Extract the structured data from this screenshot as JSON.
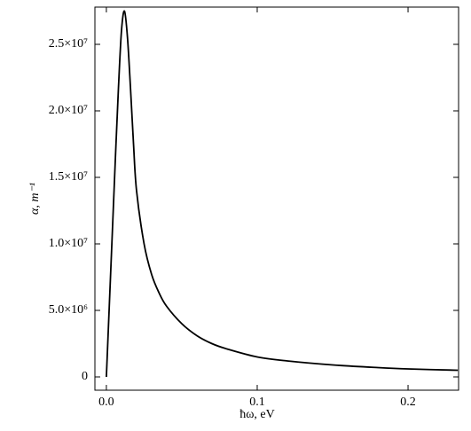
{
  "chart_data": {
    "type": "line",
    "xlabel": "ħω, eV",
    "ylabel": "α, m⁻¹",
    "x": [
      0,
      0.002,
      0.004,
      0.006,
      0.008,
      0.01,
      0.012,
      0.014,
      0.016,
      0.018,
      0.02,
      0.025,
      0.03,
      0.035,
      0.04,
      0.05,
      0.06,
      0.07,
      0.08,
      0.1,
      0.12,
      0.15,
      0.18,
      0.2,
      0.233
    ],
    "series": [
      {
        "color": "#000000",
        "values": [
          0,
          5500000,
          11000000,
          16500000,
          21700000,
          26000000,
          27500000,
          25500000,
          21700000,
          17500000,
          14000000,
          10000000,
          7700000,
          6300000,
          5300000,
          4000000,
          3100000,
          2500000,
          2100000,
          1500000,
          1200000,
          900000,
          700000,
          600000,
          500000
        ]
      }
    ],
    "xlim": [
      -0.0076,
      0.2335
    ],
    "ylim": [
      -1000000,
      27800000
    ],
    "xticks": [
      {
        "value": 0,
        "label": "0.0"
      },
      0.1,
      0.2
    ],
    "yticks": [
      0,
      {
        "value": 5000000,
        "label": "5.0×10⁶"
      },
      {
        "value": 10000000,
        "label": "1.0×10⁷"
      },
      {
        "value": 15000000,
        "label": "1.5×10⁷"
      },
      {
        "value": 20000000,
        "label": "2.0×10⁷"
      },
      {
        "value": 25000000,
        "label": "2.5×10⁷"
      }
    ]
  }
}
